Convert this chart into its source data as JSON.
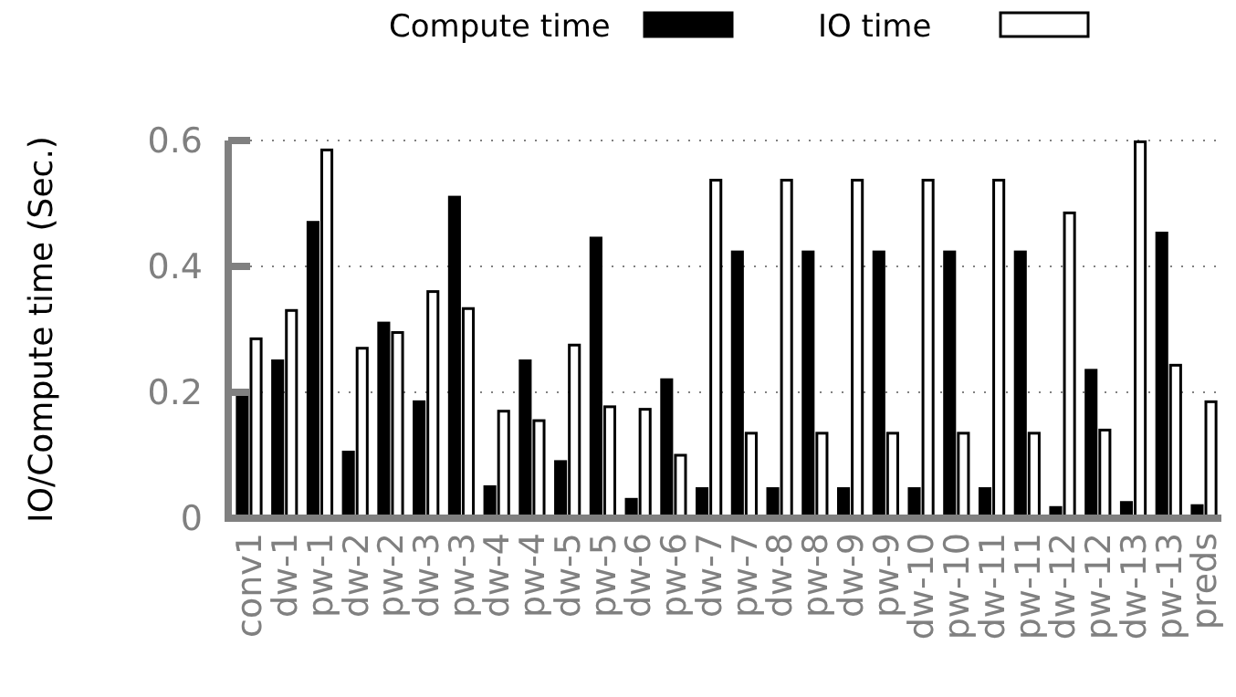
{
  "chart_data": {
    "type": "bar",
    "ylabel": "IO/Compute time (Sec.)",
    "categories": [
      "conv1",
      "dw-1",
      "pw-1",
      "dw-2",
      "pw-2",
      "dw-3",
      "pw-3",
      "dw-4",
      "pw-4",
      "dw-5",
      "pw-5",
      "dw-6",
      "pw-6",
      "dw-7",
      "pw-7",
      "dw-8",
      "pw-8",
      "dw-9",
      "pw-9",
      "dw-10",
      "pw-10",
      "dw-11",
      "pw-11",
      "dw-12",
      "pw-12",
      "dw-13",
      "pw-13",
      "preds"
    ],
    "series": [
      {
        "name": "Compute time",
        "color": "#000000",
        "values": [
          0.2,
          0.25,
          0.47,
          0.105,
          0.31,
          0.185,
          0.51,
          0.05,
          0.25,
          0.09,
          0.445,
          0.03,
          0.22,
          0.047,
          0.423,
          0.047,
          0.423,
          0.047,
          0.423,
          0.047,
          0.423,
          0.047,
          0.423,
          0.017,
          0.235,
          0.025,
          0.453,
          0.02
        ]
      },
      {
        "name": "IO time",
        "color": "#ffffff",
        "values": [
          0.285,
          0.33,
          0.585,
          0.27,
          0.295,
          0.36,
          0.333,
          0.17,
          0.155,
          0.275,
          0.177,
          0.173,
          0.1,
          0.537,
          0.135,
          0.537,
          0.135,
          0.537,
          0.135,
          0.537,
          0.135,
          0.537,
          0.135,
          0.485,
          0.14,
          0.598,
          0.243,
          0.185
        ]
      }
    ],
    "ylim": [
      0,
      0.6
    ],
    "yticks": [
      0,
      0.2,
      0.4,
      0.6
    ],
    "grid": "y",
    "legend": "top"
  }
}
